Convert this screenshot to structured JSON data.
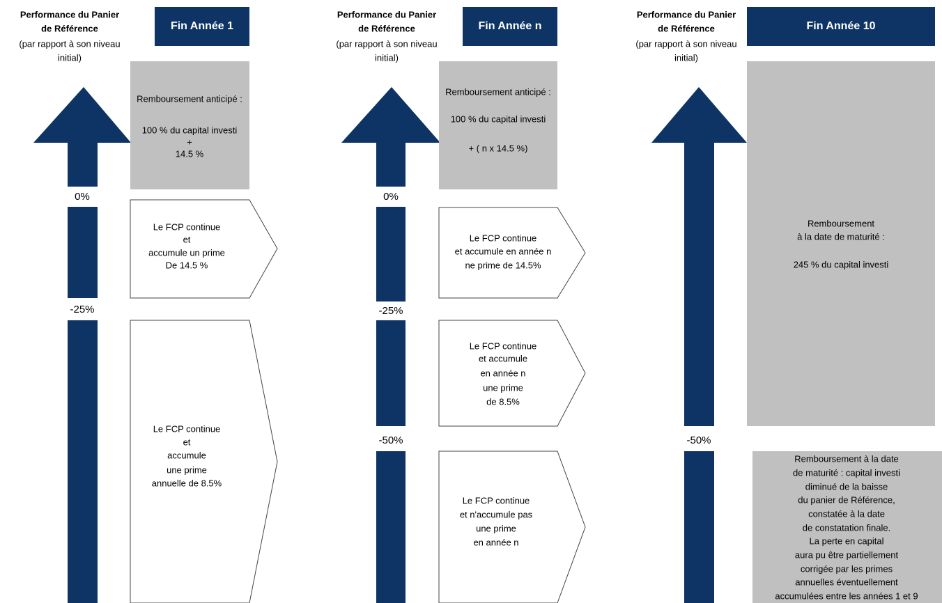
{
  "panels": [
    {
      "heading": [
        "Performance du Panier",
        "de Référence"
      ],
      "note": [
        "(par rapport à son niveau",
        "initial)"
      ],
      "title": "Fin Année 1",
      "levels": [
        "0%",
        "-25%"
      ],
      "boxes": [
        {
          "lines": [
            "Remboursement anticipé :",
            "100 % du capital investi",
            "+",
            "14.5 %"
          ]
        },
        {
          "lines": [
            "Le FCP continue",
            "et",
            "accumule un prime",
            "De 14.5 %"
          ]
        },
        {
          "lines": [
            "Le FCP continue",
            "et",
            "accumule",
            "une prime",
            "annuelle de 8.5%"
          ]
        }
      ]
    },
    {
      "heading": [
        "Performance du Panier",
        "de Référence"
      ],
      "note": [
        "(par rapport à son niveau",
        "initial)"
      ],
      "title": "Fin Année n",
      "levels": [
        "0%",
        "-25%",
        "-50%"
      ],
      "boxes": [
        {
          "lines": [
            "Remboursement anticipé :",
            "100 % du capital investi",
            "+  ( n x 14.5 %)"
          ]
        },
        {
          "lines": [
            "Le FCP continue",
            "et accumule en année n",
            "ne prime de 14.5%"
          ]
        },
        {
          "lines": [
            "Le FCP continue",
            "et accumule",
            "en année n",
            "une  prime",
            "de 8.5%"
          ]
        },
        {
          "lines": [
            "Le FCP continue",
            "et n'accumule pas",
            "une prime",
            "en année n"
          ]
        }
      ]
    },
    {
      "heading": [
        "Performance du Panier",
        "de Référence"
      ],
      "note": [
        "(par rapport à son niveau",
        "initial)"
      ],
      "title": "Fin Année 10",
      "levels": [
        "-50%"
      ],
      "boxes": [
        {
          "lines": [
            "Remboursement",
            "à la date de maturité :",
            "245 % du capital investi"
          ]
        },
        {
          "lines": [
            "Remboursement à la date",
            "de maturité : capital investi",
            "diminué de la baisse",
            "du panier de Référence,",
            "constatée à la date",
            "de constatation finale.",
            "La perte en capital",
            "aura pu être partiellement",
            "corrigée par les primes",
            "annuelles éventuellement",
            "accumulées entre les années 1 et 9"
          ]
        }
      ]
    }
  ]
}
